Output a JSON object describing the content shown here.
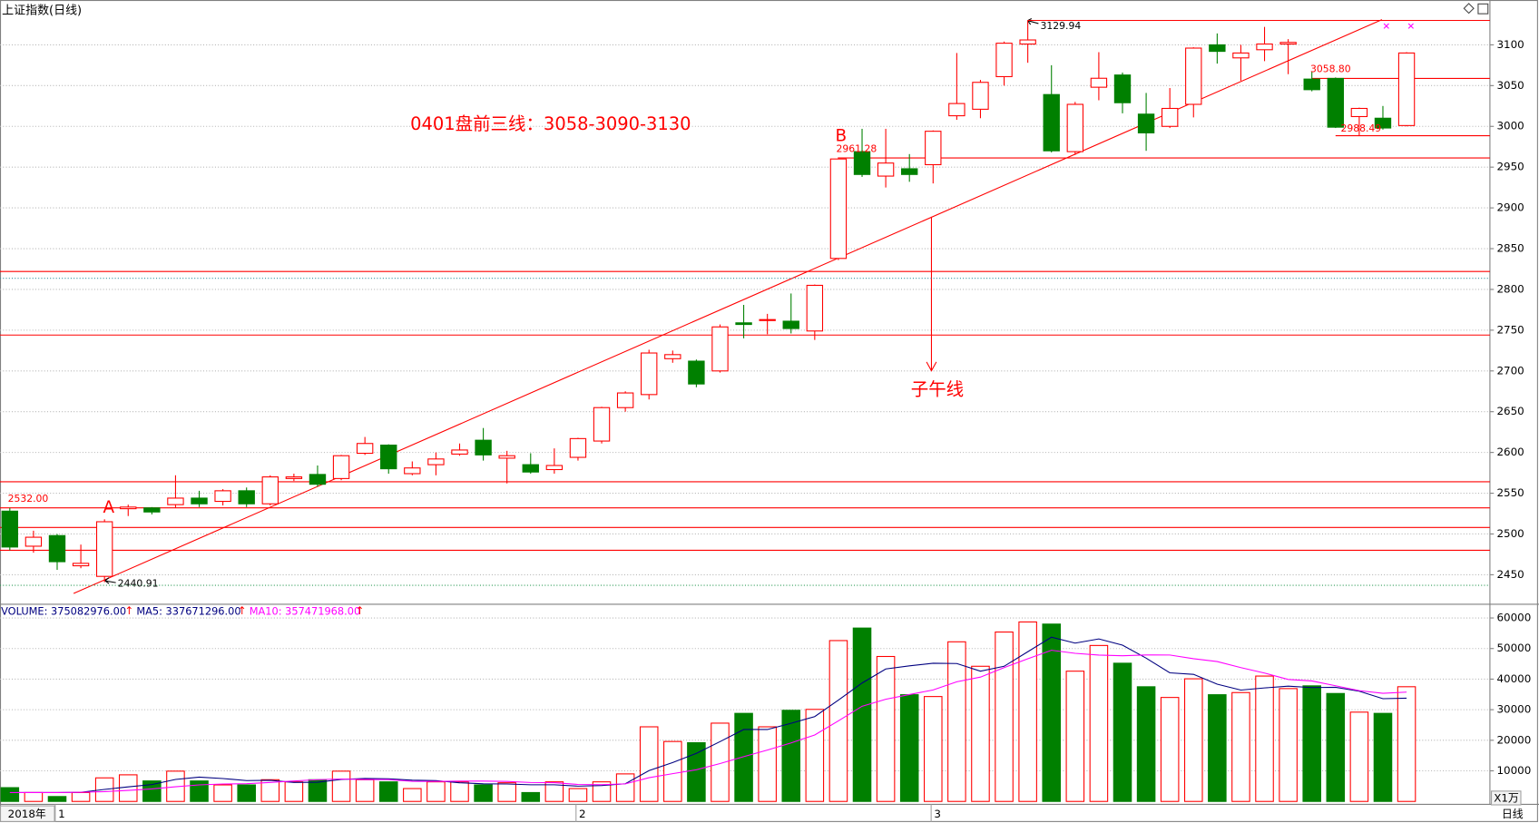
{
  "chart_data": [
    {
      "type": "candlestick",
      "title": "上证指数(日线)",
      "period_label": "日线",
      "year_label": "2018年",
      "categories": [
        null,
        null,
        "1",
        null,
        null,
        null,
        null,
        null,
        null,
        null,
        null,
        null,
        null,
        null,
        null,
        null,
        null,
        null,
        null,
        null,
        null,
        null,
        null,
        null,
        "2",
        null,
        null,
        null,
        null,
        null,
        null,
        null,
        null,
        null,
        null,
        null,
        null,
        null,
        null,
        "3",
        null,
        null,
        null,
        null,
        null,
        null,
        null,
        null,
        null,
        null,
        null,
        null,
        null,
        null,
        null,
        null,
        null,
        null,
        null,
        null
      ],
      "open": [
        2528,
        2485,
        2498,
        2461,
        2448,
        2531,
        2532,
        2536,
        2544,
        2540,
        2553,
        2537,
        2568,
        2573,
        2568,
        2599,
        2609,
        2574,
        2585,
        2598,
        2615,
        2593,
        2585,
        2579,
        2594,
        2614,
        2655,
        2671,
        2715,
        2712,
        2700,
        2759,
        2762,
        2761,
        2749,
        2838,
        2969,
        2939,
        2948,
        2953,
        3013,
        3021,
        3061,
        3101,
        3039,
        2969,
        3048,
        3063,
        3015,
        3000,
        3027,
        3100,
        3084,
        3094,
        3101,
        3058,
        3058.8,
        3012,
        3010,
        3001
      ],
      "high": [
        2532,
        2504,
        2500,
        2487,
        2518,
        2536,
        2533,
        2572,
        2553,
        2555,
        2557,
        2572,
        2574,
        2584,
        2597,
        2619,
        2610,
        2589,
        2600,
        2611,
        2630,
        2602,
        2599,
        2605,
        2618,
        2656,
        2675,
        2726,
        2725,
        2714,
        2757,
        2781,
        2770,
        2795,
        2806,
        2962,
        2997,
        2997,
        2966,
        2995,
        3090,
        3057,
        3104,
        3129.94,
        3075,
        3030,
        3091,
        3066,
        3041,
        3047,
        3097,
        3114,
        3100,
        3122,
        3107,
        3067,
        3060,
        3023,
        3025,
        3091
      ],
      "low": [
        2480,
        2477,
        2456,
        2458,
        2440.91,
        2522,
        2524,
        2532,
        2533,
        2535,
        2533,
        2535,
        2565,
        2558,
        2566,
        2597,
        2574,
        2572,
        2572,
        2596,
        2590,
        2562,
        2574,
        2574,
        2590,
        2611,
        2650,
        2665,
        2710,
        2680,
        2698,
        2740,
        2745,
        2746,
        2738,
        2836,
        2938,
        2925,
        2932,
        2930,
        3008,
        3010,
        3050,
        3078,
        2968,
        2965,
        3032,
        3016,
        2970,
        2998,
        3011,
        3077,
        3056,
        3080,
        3064,
        3043,
        2998,
        2988,
        2996,
        3000
      ],
      "close": [
        2484,
        2496,
        2466,
        2464,
        2515,
        2533,
        2527,
        2544,
        2537,
        2553,
        2537,
        2570,
        2570,
        2561,
        2596,
        2611,
        2580,
        2581,
        2592,
        2603,
        2597,
        2596,
        2576,
        2584,
        2617,
        2655,
        2673,
        2722,
        2720,
        2684,
        2754,
        2757,
        2763,
        2752,
        2805,
        2960,
        2941,
        2955,
        2941,
        2994,
        3028,
        3054,
        3102,
        3106,
        2970,
        3027,
        3059,
        3029,
        2992,
        3022,
        3096,
        3092,
        3090,
        3101,
        3103,
        3045,
        2999,
        3022,
        2998,
        3090
      ],
      "up_color": "#ff0000",
      "down_color": "#008000",
      "ylim": [
        2415,
        3155
      ],
      "yticks": [
        2450,
        2500,
        2550,
        2600,
        2650,
        2700,
        2750,
        2800,
        2850,
        2900,
        2950,
        3000,
        3050,
        3100
      ],
      "grid": true,
      "hlines": [
        {
          "value": 3129.94,
          "start": 43
        },
        {
          "value": 3058.8,
          "start": 55
        },
        {
          "value": 2988.49,
          "start": 56
        },
        {
          "value": 2961.28,
          "start": 35
        },
        {
          "value": 2822,
          "start": 0
        },
        {
          "value": 2744,
          "start": 0
        },
        {
          "value": 2564,
          "start": 0
        },
        {
          "value": 2532,
          "start": 0
        },
        {
          "value": 2508,
          "start": 0
        },
        {
          "value": 2480,
          "start": 0
        }
      ],
      "hline_color": "#ff0000",
      "dotted_lines": [
        {
          "value": 2813.6,
          "color": "#2f8f9f"
        },
        {
          "value": 2437,
          "color": "#2e9b57"
        }
      ],
      "price_labels": [
        {
          "value": 2532,
          "label": "2532.00"
        },
        {
          "value": 2440.91,
          "label": "2440.91"
        },
        {
          "value": 3129.94,
          "label": "3129.94"
        },
        {
          "value": 2961.28,
          "label": "2961.28"
        },
        {
          "value": 3058.8,
          "label": "3058.80"
        },
        {
          "value": 2988.49,
          "label": "2988.49"
        }
      ],
      "annotations": [
        "0401盘前三线：3058-3090-3130",
        "A",
        "B",
        "子午线"
      ]
    },
    {
      "type": "volume",
      "headers": [
        "VOLUME: 375082976.00",
        "MA5: 337671296.00",
        "MA10: 357471968.00"
      ],
      "header_colors": [
        "#000080",
        "#000080",
        "#ff00ff"
      ],
      "up_arrow": "↑",
      "unit_label": "X1万",
      "values": [
        4500,
        2900,
        1600,
        2900,
        7700,
        8700,
        6700,
        9900,
        6700,
        5400,
        5400,
        7100,
        6400,
        7100,
        9900,
        7100,
        6400,
        4200,
        6400,
        6400,
        5400,
        6100,
        2900,
        6400,
        4200,
        6400,
        9000,
        24400,
        19600,
        19200,
        25600,
        28800,
        24400,
        29800,
        30100,
        52600,
        56700,
        47400,
        34900,
        34300,
        52200,
        44200,
        55400,
        58700,
        58000,
        42600,
        51000,
        45200,
        37500,
        34000,
        40100,
        34900,
        35600,
        41000,
        36900,
        37800,
        35300,
        29200,
        28800,
        37508
      ],
      "series": [
        {
          "color": "#000080",
          "values": [
            2900,
            2900,
            2900,
            3000,
            3920,
            4760,
            5520,
            7180,
            7940,
            7480,
            6820,
            6900,
            6200,
            6280,
            7180,
            7520,
            7380,
            6940,
            6800,
            6100,
            5760,
            5700,
            5440,
            5440,
            5000,
            5200,
            5780,
            10080,
            12720,
            15720,
            19560,
            23520,
            23520,
            25560,
            27740,
            33140,
            38720,
            43320,
            44340,
            45180,
            45100,
            42600,
            44200,
            48960,
            53700,
            51780,
            53140,
            51100,
            46860,
            42060,
            41560,
            38340,
            36420,
            37120,
            37700,
            37240,
            37320,
            36040,
            33600,
            33767
          ]
        },
        {
          "color": "#ff00ff",
          "values": [
            2900,
            2900,
            2900,
            3000,
            3200,
            3600,
            4100,
            4800,
            5400,
            5700,
            5790,
            6210,
            6690,
            7110,
            7330,
            7170,
            7140,
            6570,
            6540,
            6640,
            6640,
            6540,
            6190,
            6120,
            5550,
            5480,
            5740,
            7760,
            9080,
            10360,
            12380,
            14650,
            16800,
            19140,
            21730,
            26350,
            31120,
            33420,
            34950,
            36460,
            39120,
            40660,
            43760,
            46650,
            49440,
            48440,
            47870,
            47650,
            47910,
            47880,
            46670,
            45740,
            43760,
            41990,
            39880,
            39400,
            37830,
            36230,
            35360,
            35747
          ]
        }
      ],
      "ylim": [
        0,
        63200
      ],
      "yticks": [
        10000,
        20000,
        30000,
        40000,
        50000,
        60000
      ],
      "grid": true
    }
  ]
}
